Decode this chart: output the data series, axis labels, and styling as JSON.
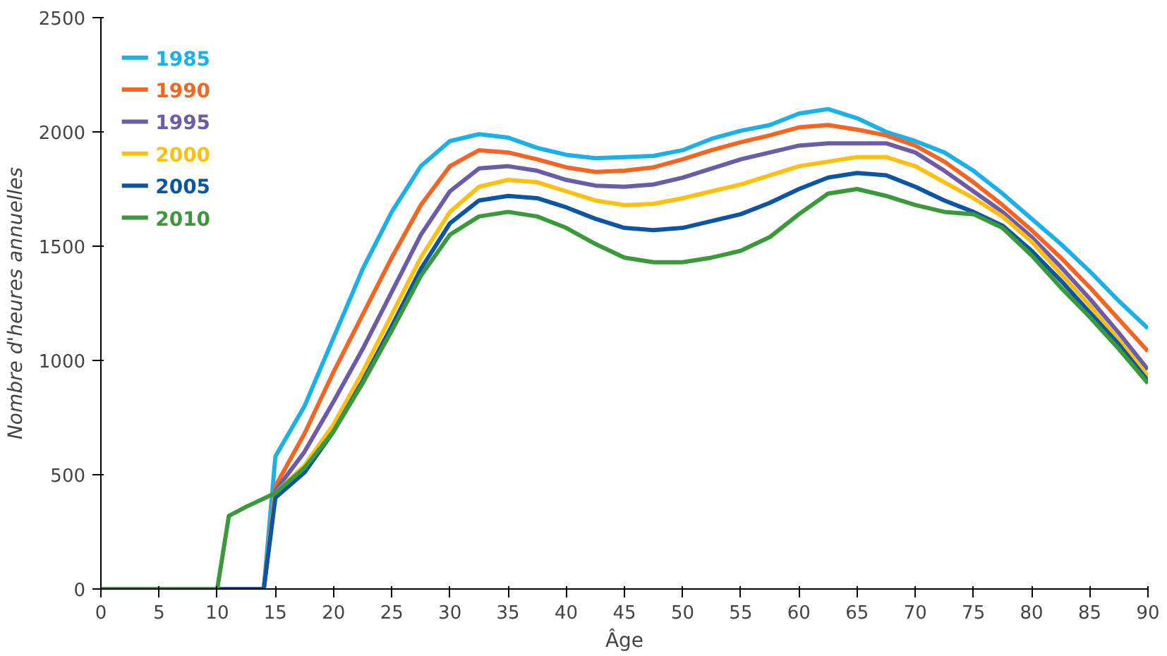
{
  "chart_data": {
    "type": "line",
    "xlabel": "Âge",
    "ylabel": "Nombre d'heures annuelles",
    "xlim": [
      0,
      90
    ],
    "ylim": [
      0,
      2500
    ],
    "xticks": [
      0,
      5,
      10,
      15,
      20,
      25,
      30,
      35,
      40,
      45,
      50,
      55,
      60,
      65,
      70,
      75,
      80,
      85,
      90
    ],
    "yticks": [
      0,
      500,
      1000,
      1500,
      2000,
      2500
    ],
    "grid": false,
    "legend": "top left",
    "marker": "none",
    "line_style": "solid",
    "series": [
      {
        "name": "1985",
        "color": "#1cb0e8",
        "x": [
          0,
          14,
          15,
          17.5,
          20,
          22.5,
          25,
          27.5,
          30,
          32.5,
          35,
          37.5,
          40,
          42.5,
          45,
          47.5,
          50,
          52.5,
          55,
          57.5,
          60,
          62.5,
          65,
          67.5,
          70,
          72.5,
          75,
          77.5,
          80,
          82.5,
          85,
          87.5,
          90
        ],
        "values": [
          0,
          0,
          580,
          800,
          1100,
          1400,
          1650,
          1850,
          1960,
          1990,
          1975,
          1930,
          1900,
          1885,
          1890,
          1895,
          1920,
          1970,
          2005,
          2030,
          2080,
          2100,
          2060,
          2000,
          1960,
          1910,
          1830,
          1730,
          1620,
          1510,
          1390,
          1260,
          1140
        ]
      },
      {
        "name": "1990",
        "color": "#f26522",
        "x": [
          0,
          14,
          15,
          17.5,
          20,
          22.5,
          25,
          27.5,
          30,
          32.5,
          35,
          37.5,
          40,
          42.5,
          45,
          47.5,
          50,
          52.5,
          55,
          57.5,
          60,
          62.5,
          65,
          67.5,
          70,
          72.5,
          75,
          77.5,
          80,
          82.5,
          85,
          87.5,
          90
        ],
        "values": [
          0,
          0,
          450,
          680,
          950,
          1200,
          1450,
          1680,
          1850,
          1920,
          1910,
          1880,
          1845,
          1825,
          1830,
          1845,
          1880,
          1920,
          1955,
          1985,
          2020,
          2030,
          2010,
          1985,
          1940,
          1870,
          1780,
          1680,
          1570,
          1450,
          1320,
          1180,
          1040
        ]
      },
      {
        "name": "1995",
        "color": "#6b5ba8",
        "x": [
          0,
          14,
          15,
          17.5,
          20,
          22.5,
          25,
          27.5,
          30,
          32.5,
          35,
          37.5,
          40,
          42.5,
          45,
          47.5,
          50,
          52.5,
          55,
          57.5,
          60,
          62.5,
          65,
          67.5,
          70,
          72.5,
          75,
          77.5,
          80,
          82.5,
          85,
          87.5,
          90
        ],
        "values": [
          0,
          0,
          430,
          600,
          820,
          1050,
          1300,
          1550,
          1740,
          1840,
          1850,
          1830,
          1790,
          1765,
          1760,
          1770,
          1800,
          1840,
          1880,
          1910,
          1940,
          1950,
          1950,
          1950,
          1910,
          1830,
          1740,
          1650,
          1540,
          1410,
          1270,
          1120,
          960
        ]
      },
      {
        "name": "2000",
        "color": "#fdc010",
        "x": [
          0,
          14,
          15,
          17.5,
          20,
          22.5,
          25,
          27.5,
          30,
          32.5,
          35,
          37.5,
          40,
          42.5,
          45,
          47.5,
          50,
          52.5,
          55,
          57.5,
          60,
          62.5,
          65,
          67.5,
          70,
          72.5,
          75,
          77.5,
          80,
          82.5,
          85,
          87.5,
          90
        ],
        "values": [
          0,
          0,
          420,
          540,
          720,
          950,
          1200,
          1450,
          1650,
          1760,
          1790,
          1780,
          1740,
          1700,
          1680,
          1685,
          1710,
          1740,
          1770,
          1810,
          1850,
          1870,
          1890,
          1890,
          1850,
          1780,
          1710,
          1630,
          1520,
          1380,
          1240,
          1090,
          930
        ]
      },
      {
        "name": "2005",
        "color": "#0b56a4",
        "x": [
          0,
          14,
          15,
          17.5,
          20,
          22.5,
          25,
          27.5,
          30,
          32.5,
          35,
          37.5,
          40,
          42.5,
          45,
          47.5,
          50,
          52.5,
          55,
          57.5,
          60,
          62.5,
          65,
          67.5,
          70,
          72.5,
          75,
          77.5,
          80,
          82.5,
          85,
          87.5,
          90
        ],
        "values": [
          0,
          0,
          400,
          510,
          690,
          910,
          1150,
          1400,
          1600,
          1700,
          1720,
          1710,
          1670,
          1620,
          1580,
          1570,
          1580,
          1610,
          1640,
          1690,
          1750,
          1800,
          1820,
          1810,
          1760,
          1700,
          1650,
          1590,
          1480,
          1350,
          1210,
          1070,
          910
        ]
      },
      {
        "name": "2010",
        "color": "#3a9a3a",
        "x": [
          0,
          10,
          11,
          12.5,
          15,
          17.5,
          20,
          22.5,
          25,
          27.5,
          30,
          32.5,
          35,
          37.5,
          40,
          42.5,
          45,
          47.5,
          50,
          52.5,
          55,
          57.5,
          60,
          62.5,
          65,
          67.5,
          70,
          72.5,
          75,
          77.5,
          80,
          82.5,
          85,
          87.5,
          90
        ],
        "values": [
          0,
          0,
          320,
          360,
          420,
          530,
          690,
          900,
          1130,
          1370,
          1550,
          1630,
          1650,
          1630,
          1580,
          1510,
          1450,
          1430,
          1430,
          1450,
          1480,
          1540,
          1640,
          1730,
          1750,
          1720,
          1680,
          1650,
          1640,
          1580,
          1460,
          1320,
          1190,
          1050,
          900
        ]
      }
    ]
  }
}
